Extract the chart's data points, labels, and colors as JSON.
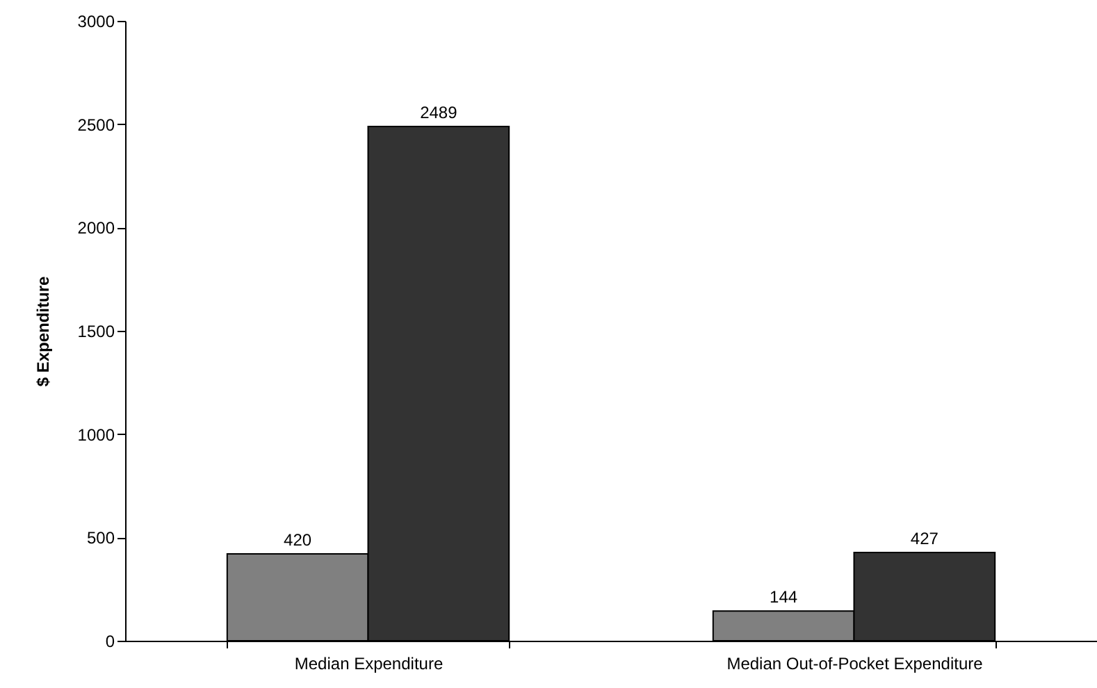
{
  "chart_data": {
    "type": "bar",
    "ylabel": "$ Expenditure",
    "categories": [
      "Median Expenditure",
      "Median Out-of-Pocket Expenditure"
    ],
    "series": [
      {
        "color": "#808080",
        "values": [
          420,
          144
        ]
      },
      {
        "color": "#333333",
        "values": [
          2489,
          427
        ]
      }
    ],
    "ylim": [
      0,
      3000
    ],
    "yticks": [
      0,
      500,
      1000,
      1500,
      2000,
      2500,
      3000
    ],
    "grid": false,
    "data_labels": true
  }
}
